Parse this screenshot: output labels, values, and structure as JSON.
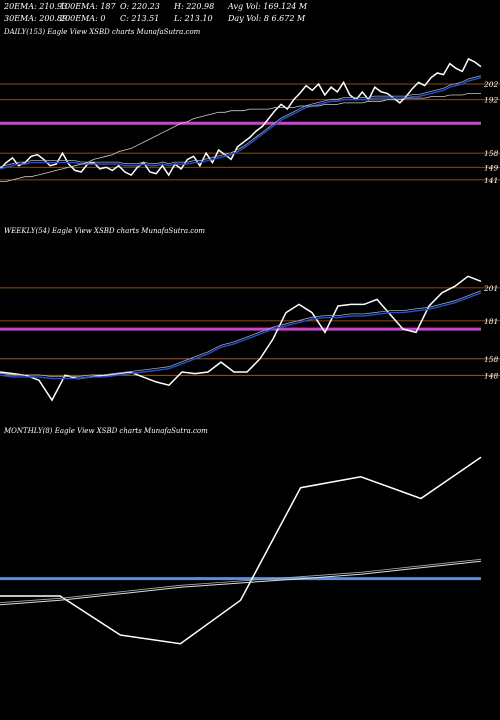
{
  "header": {
    "row1": [
      {
        "key": "ema20",
        "text": "20EMA: 210.93"
      },
      {
        "key": "ema100",
        "text": "100EMA: 187"
      },
      {
        "key": "open",
        "text": "O: 220.23"
      },
      {
        "key": "high",
        "text": "H: 220.98"
      },
      {
        "key": "avgvol",
        "text": "Avg Vol: 169.124  M"
      }
    ],
    "row2": [
      {
        "key": "ema30",
        "text": "30EMA: 200.89"
      },
      {
        "key": "ema200",
        "text": "200EMA: 0"
      },
      {
        "key": "close",
        "text": "C: 213.51"
      },
      {
        "key": "low",
        "text": "L: 213.10"
      },
      {
        "key": "dayvol",
        "text": "Day Vol: 8          6.672  M"
      }
    ]
  },
  "colors": {
    "background": "#000000",
    "price": "#ffffff",
    "ema": "#1f4fe0",
    "support": "#cc44cc",
    "level": "#b5651d",
    "monthly_line": "#5b8fdc"
  },
  "chart_data": [
    {
      "type": "line",
      "title": "DAILY(153) Eagle  View  XSBD charts MunafaSutra.com",
      "ylim": [
        125,
        230
      ],
      "level_labels": [
        202,
        192,
        158,
        149,
        141
      ],
      "levels": [
        202,
        192,
        158,
        149,
        141
      ],
      "support": 177,
      "series": [
        {
          "role": "price",
          "values": [
            148,
            152,
            155,
            150,
            152,
            156,
            157,
            154,
            150,
            151,
            158,
            151,
            147,
            146,
            151,
            152,
            148,
            149,
            147,
            150,
            146,
            144,
            149,
            152,
            146,
            145,
            150,
            144,
            151,
            148,
            154,
            156,
            150,
            158,
            152,
            160,
            157,
            154,
            162,
            165,
            168,
            172,
            175,
            180,
            185,
            189,
            186,
            192,
            196,
            201,
            198,
            202,
            195,
            200,
            197,
            203,
            195,
            192,
            197,
            192,
            200,
            197,
            196,
            193,
            190,
            194,
            199,
            203,
            201,
            206,
            209,
            208,
            215,
            212,
            210,
            218,
            216,
            213
          ]
        },
        {
          "role": "ema",
          "values": [
            148,
            149,
            150,
            151,
            151,
            152,
            152,
            152,
            152,
            152,
            152,
            152,
            152,
            151,
            151,
            151,
            151,
            151,
            151,
            151,
            150,
            150,
            150,
            151,
            150,
            150,
            151,
            150,
            151,
            151,
            151,
            152,
            152,
            153,
            154,
            155,
            156,
            157,
            159,
            161,
            164,
            167,
            170,
            173,
            176,
            179,
            181,
            183,
            185,
            187,
            188,
            189,
            190,
            191,
            191,
            192,
            192,
            192,
            192,
            192,
            193,
            193,
            193,
            193,
            193,
            193,
            194,
            194,
            195,
            196,
            197,
            198,
            200,
            201,
            202,
            204,
            205,
            206
          ]
        },
        {
          "role": "ema_slow",
          "values": [
            140,
            140,
            141,
            142,
            143,
            143,
            144,
            145,
            146,
            147,
            148,
            149,
            150,
            151,
            152,
            154,
            155,
            156,
            157,
            159,
            160,
            161,
            163,
            165,
            167,
            169,
            171,
            173,
            175,
            177,
            178,
            180,
            181,
            182,
            183,
            184,
            184,
            185,
            185,
            185,
            186,
            186,
            186,
            186,
            187,
            187,
            187,
            187,
            188,
            188,
            188,
            188,
            189,
            189,
            189,
            190,
            190,
            190,
            190,
            191,
            191,
            191,
            192,
            192,
            192,
            193,
            193,
            193,
            193,
            194,
            194,
            194,
            195,
            195,
            195,
            196,
            196,
            196
          ]
        }
      ]
    },
    {
      "type": "line",
      "title": "WEEKLY(54) Eagle  View  XSBD charts MunafaSutra.com",
      "ylim": [
        130,
        230
      ],
      "level_labels": [
        201,
        181,
        158,
        148
      ],
      "levels": [
        201,
        181,
        158,
        148
      ],
      "support": 176,
      "series": [
        {
          "role": "price",
          "values": [
            150,
            149,
            148,
            145,
            133,
            148,
            146,
            147,
            148,
            149,
            150,
            147,
            144,
            142,
            150,
            149,
            150,
            156,
            150,
            150,
            158,
            170,
            186,
            191,
            186,
            174,
            190,
            191,
            191,
            194,
            185,
            176,
            174,
            190,
            198,
            202,
            208,
            205
          ]
        },
        {
          "role": "ema",
          "values": [
            148,
            147,
            147,
            147,
            146,
            146,
            146,
            147,
            147,
            148,
            149,
            150,
            151,
            152,
            155,
            158,
            161,
            165,
            167,
            170,
            173,
            176,
            178,
            180,
            182,
            183,
            183,
            184,
            184,
            185,
            186,
            186,
            187,
            188,
            190,
            192,
            195,
            198
          ]
        }
      ]
    },
    {
      "type": "line",
      "title": "MONTHLY(8) Eagle  View  XSBD charts MunafaSutra.com",
      "ylim": [
        120,
        240
      ],
      "support": 176,
      "series": [
        {
          "role": "price",
          "values": [
            168,
            168,
            150,
            146,
            166,
            218,
            223,
            213,
            232
          ]
        },
        {
          "role": "ema",
          "values": [
            164,
            166,
            169,
            172,
            174,
            176,
            178,
            181,
            184
          ]
        }
      ]
    }
  ]
}
